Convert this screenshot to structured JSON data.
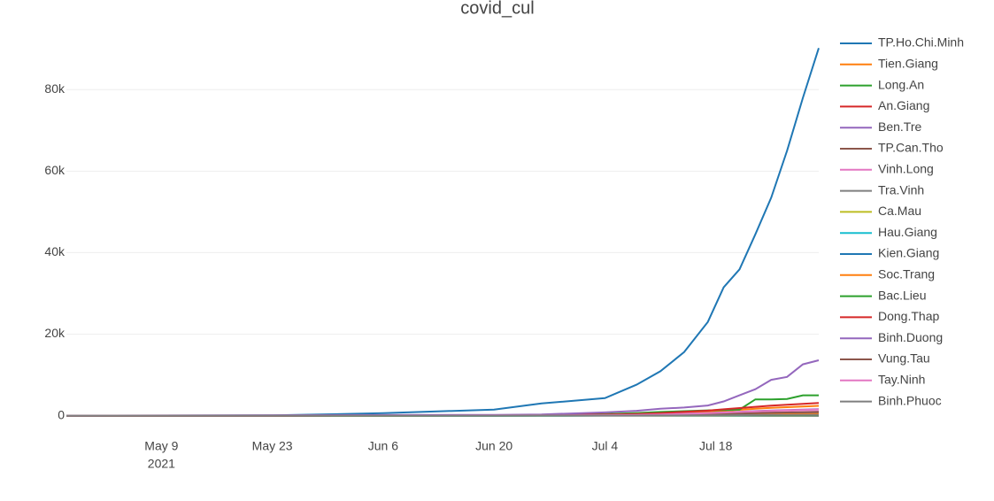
{
  "chart_data": {
    "type": "line",
    "title": "covid_cul",
    "x": [
      "2021-04-27",
      "2021-05-09",
      "2021-05-23",
      "2021-06-06",
      "2021-06-20",
      "2021-06-26",
      "2021-07-04",
      "2021-07-08",
      "2021-07-11",
      "2021-07-14",
      "2021-07-17",
      "2021-07-19",
      "2021-07-21",
      "2021-07-23",
      "2021-07-25",
      "2021-07-27",
      "2021-07-29",
      "2021-07-31"
    ],
    "xlim": [
      "2021-04-27",
      "2021-07-31"
    ],
    "xticks": [
      {
        "value": "2021-05-09",
        "label": "May 9"
      },
      {
        "value": "2021-05-23",
        "label": "May 23"
      },
      {
        "value": "2021-06-06",
        "label": "Jun 6"
      },
      {
        "value": "2021-06-20",
        "label": "Jun 20"
      },
      {
        "value": "2021-07-04",
        "label": "Jul 4"
      },
      {
        "value": "2021-07-18",
        "label": "Jul 18"
      }
    ],
    "x_year_label": "2021",
    "ylim": [
      -4000,
      92000
    ],
    "yticks": [
      0,
      {
        "value": 20000,
        "label": "20k"
      },
      {
        "value": 40000,
        "label": "40k"
      },
      {
        "value": 60000,
        "label": "60k"
      },
      {
        "value": 80000,
        "label": "80k"
      }
    ],
    "grid": true,
    "legend": "right",
    "series": [
      {
        "name": "TP.Ho.Chi.Minh",
        "color": "#1f77b4",
        "values": [
          0,
          20,
          60,
          600,
          1500,
          3000,
          4300,
          7600,
          10900,
          15600,
          23000,
          31500,
          35900,
          44500,
          53500,
          65000,
          78000,
          90200
        ]
      },
      {
        "name": "Tien.Giang",
        "color": "#ff7f0e",
        "values": [
          0,
          0,
          0,
          20,
          50,
          100,
          190,
          310,
          480,
          720,
          960,
          1200,
          1440,
          1680,
          1920,
          2090,
          2260,
          2400
        ]
      },
      {
        "name": "Long.An",
        "color": "#2ca02c",
        "values": [
          0,
          0,
          10,
          50,
          100,
          200,
          400,
          650,
          900,
          1100,
          1300,
          1400,
          1500,
          4000,
          4000,
          4100,
          5000,
          5000
        ]
      },
      {
        "name": "An.Giang",
        "color": "#d62728",
        "values": [
          0,
          0,
          0,
          10,
          20,
          30,
          60,
          100,
          160,
          240,
          320,
          400,
          480,
          560,
          640,
          700,
          750,
          800
        ]
      },
      {
        "name": "Ben.Tre",
        "color": "#9467bd",
        "values": [
          0,
          0,
          0,
          20,
          30,
          60,
          130,
          210,
          320,
          480,
          640,
          800,
          960,
          1120,
          1280,
          1390,
          1500,
          1600
        ]
      },
      {
        "name": "TP.Can.Tho",
        "color": "#8c564b",
        "values": [
          0,
          0,
          0,
          10,
          15,
          30,
          55,
          90,
          140,
          210,
          280,
          350,
          420,
          490,
          560,
          610,
          660,
          700
        ]
      },
      {
        "name": "Vinh.Long",
        "color": "#e377c2",
        "values": [
          0,
          0,
          0,
          10,
          20,
          40,
          80,
          130,
          200,
          300,
          400,
          500,
          600,
          700,
          800,
          870,
          940,
          1000
        ]
      },
      {
        "name": "Tra.Vinh",
        "color": "#7f7f7f",
        "values": [
          0,
          0,
          0,
          5,
          10,
          20,
          40,
          65,
          100,
          150,
          200,
          250,
          300,
          350,
          400,
          435,
          470,
          500
        ]
      },
      {
        "name": "Ca.Mau",
        "color": "#bcbd22",
        "values": [
          0,
          0,
          0,
          2,
          4,
          8,
          16,
          26,
          40,
          60,
          80,
          100,
          120,
          140,
          160,
          174,
          188,
          200
        ]
      },
      {
        "name": "Hau.Giang",
        "color": "#17becf",
        "values": [
          0,
          0,
          0,
          2,
          3,
          6,
          12,
          20,
          30,
          45,
          60,
          75,
          90,
          105,
          120,
          130,
          141,
          150
        ]
      },
      {
        "name": "Kien.Giang",
        "color": "#1f77b4",
        "values": [
          0,
          0,
          0,
          3,
          6,
          12,
          24,
          39,
          60,
          90,
          120,
          150,
          180,
          210,
          240,
          261,
          282,
          300
        ]
      },
      {
        "name": "Soc.Trang",
        "color": "#ff7f0e",
        "values": [
          0,
          0,
          0,
          4,
          8,
          16,
          32,
          52,
          80,
          120,
          160,
          200,
          240,
          280,
          320,
          348,
          376,
          400
        ]
      },
      {
        "name": "Bac.Lieu",
        "color": "#2ca02c",
        "values": [
          0,
          0,
          0,
          1,
          2,
          4,
          8,
          13,
          20,
          30,
          40,
          50,
          60,
          70,
          80,
          87,
          94,
          100
        ]
      },
      {
        "name": "Dong.Thap",
        "color": "#d62728",
        "values": [
          0,
          0,
          0,
          30,
          60,
          120,
          250,
          400,
          620,
          930,
          1240,
          1550,
          1860,
          2170,
          2480,
          2700,
          2900,
          3100
        ]
      },
      {
        "name": "Binh.Duong",
        "color": "#9467bd",
        "values": [
          0,
          50,
          100,
          150,
          200,
          300,
          800,
          1200,
          1700,
          2000,
          2500,
          3500,
          5000,
          6500,
          8800,
          9500,
          12600,
          13600
        ]
      },
      {
        "name": "Vung.Tau",
        "color": "#8c564b",
        "values": [
          0,
          0,
          0,
          9,
          18,
          36,
          72,
          117,
          180,
          270,
          360,
          450,
          540,
          630,
          720,
          783,
          846,
          900
        ]
      },
      {
        "name": "Tay.Ninh",
        "color": "#e377c2",
        "values": [
          0,
          0,
          0,
          15,
          30,
          60,
          120,
          195,
          300,
          450,
          600,
          750,
          900,
          1050,
          1200,
          1305,
          1410,
          1500
        ]
      },
      {
        "name": "Binh.Phuoc",
        "color": "#7f7f7f",
        "values": [
          0,
          0,
          0,
          2,
          4,
          8,
          16,
          26,
          40,
          60,
          80,
          100,
          120,
          140,
          160,
          174,
          188,
          200
        ]
      }
    ]
  }
}
